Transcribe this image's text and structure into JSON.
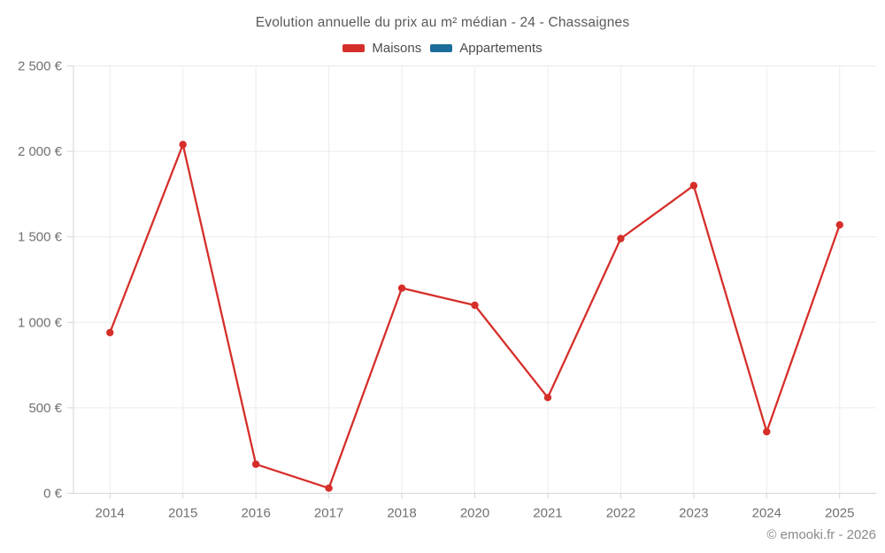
{
  "page": {
    "title": "Evolution annuelle du prix au m² médian - 24 - Chassaignes",
    "footer_credit": "© emooki.fr - 2026",
    "background_color": "#ffffff"
  },
  "legend": {
    "items": [
      {
        "label": "Maisons",
        "color": "#d62f2a"
      },
      {
        "label": "Appartements",
        "color": "#1b6d99"
      }
    ]
  },
  "chart_data": {
    "type": "line",
    "title": "Evolution annuelle du prix au m² médian - 24 - Chassaignes",
    "categories": [
      "2014",
      "2015",
      "2016",
      "2017",
      "2018",
      "2020",
      "2021",
      "2022",
      "2023",
      "2024",
      "2025"
    ],
    "series": [
      {
        "name": "Maisons",
        "color": "#d62f2a",
        "values": [
          940,
          2040,
          170,
          30,
          1200,
          1100,
          560,
          1490,
          1800,
          360,
          1570
        ]
      },
      {
        "name": "Appartements",
        "color": "#1b6d99",
        "values": []
      }
    ],
    "xlabel": "",
    "ylabel": "",
    "ylim": [
      0,
      2500
    ],
    "yticks": [
      0,
      500,
      1000,
      1500,
      2000,
      2500
    ],
    "ytick_labels": [
      "0 €",
      "500 €",
      "1 000 €",
      "1 500 €",
      "2 000 €",
      "2 500 €"
    ],
    "grid": true,
    "legend_position": "top",
    "marker_radius": 4.2,
    "line_width": 2.3,
    "grid_color": "#ececec",
    "axis_color": "#d6d6d6",
    "tick_label_color": "#717171"
  }
}
